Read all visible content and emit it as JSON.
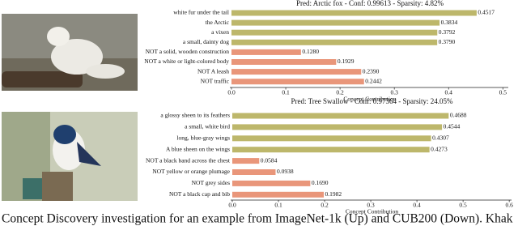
{
  "chart_data": [
    {
      "type": "bar",
      "orientation": "horizontal",
      "title": "Pred: Arctic fox - Conf: 0.99613 - Sparsity: 4.82%",
      "xlabel": "Concept Contribution",
      "categories": [
        "white fur under the tail",
        "the Arctic",
        "a vixen",
        "a small, dainty dog",
        "NOT a solid, wooden construction",
        "NOT a white or light-colored body",
        "NOT A leash",
        "NOT traffic"
      ],
      "values": [
        0.4517,
        0.3834,
        0.3792,
        0.379,
        0.128,
        0.1929,
        0.239,
        0.2442
      ],
      "value_labels": [
        "0.4517",
        "0.3834",
        "0.3792",
        "0.3790",
        "0.1280",
        "0.1929",
        "0.2390",
        "0.2442"
      ],
      "colors": [
        "#bdb76b",
        "#bdb76b",
        "#bdb76b",
        "#bdb76b",
        "#e9967a",
        "#e9967a",
        "#e9967a",
        "#e9967a"
      ],
      "xlim": [
        0,
        0.51
      ],
      "xticks": [
        {
          "value": 0,
          "label": "0.0"
        },
        0.1,
        0.2,
        0.3,
        0.4,
        0.5
      ]
    },
    {
      "type": "bar",
      "orientation": "horizontal",
      "title": "Pred: Tree Swallow - Conf: 0.97364 - Sparsity: 24.05%",
      "xlabel": "Concept Contribution",
      "categories": [
        "a glossy sheen to its feathers",
        "a small, white bird",
        "long, blue-gray wings",
        "A blue sheen on the wings",
        "NOT a black band across the chest",
        "NOT yellow or orange plumage",
        "NOT grey sides",
        "NOT a black cap and bib"
      ],
      "values": [
        0.4688,
        0.4544,
        0.4307,
        0.4273,
        0.0584,
        0.0938,
        0.169,
        0.1982
      ],
      "value_labels": [
        "0.4688",
        "0.4544",
        "0.4307",
        "0.4273",
        "0.0584",
        "0.0938",
        "0.1690",
        "0.1982"
      ],
      "colors": [
        "#bdb76b",
        "#bdb76b",
        "#bdb76b",
        "#bdb76b",
        "#e9967a",
        "#e9967a",
        "#e9967a",
        "#e9967a"
      ],
      "xlim": [
        0,
        0.605
      ],
      "xticks": [
        {
          "value": 0,
          "label": "0.0"
        },
        0.1,
        0.2,
        0.3,
        0.4,
        0.5,
        0.6
      ]
    }
  ],
  "caption": "Concept Discovery investigation for an example from ImageNet-1k (Up) and CUB200 (Down). Khak"
}
